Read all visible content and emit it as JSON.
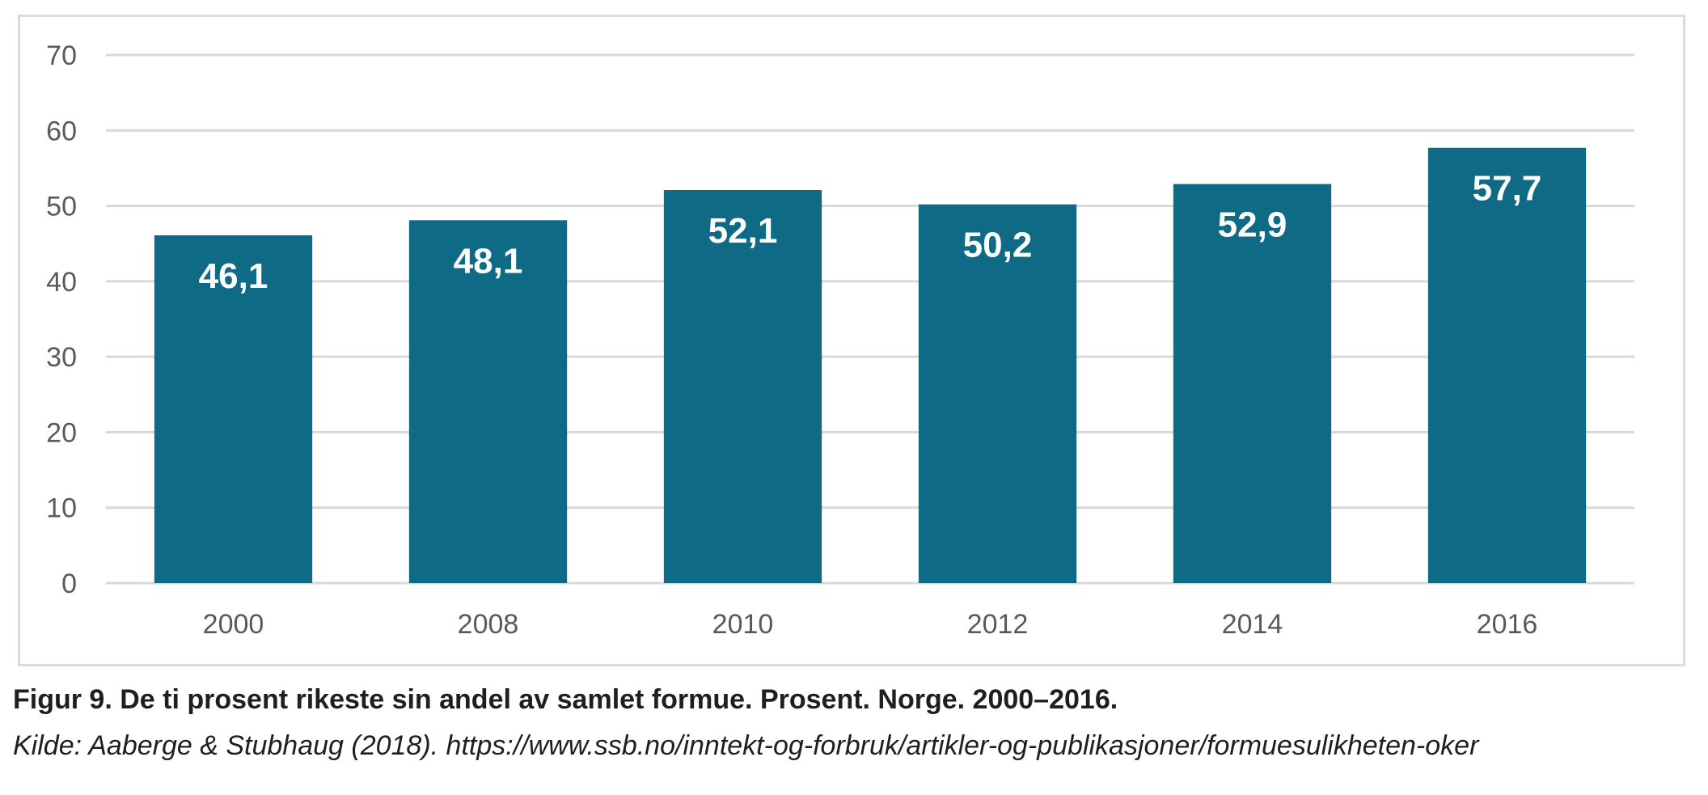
{
  "chart_data": {
    "type": "bar",
    "categories": [
      "2000",
      "2008",
      "2010",
      "2012",
      "2014",
      "2016"
    ],
    "values": [
      46.1,
      48.1,
      52.1,
      50.2,
      52.9,
      57.7
    ],
    "data_labels": [
      "46,1",
      "48,1",
      "52,1",
      "50,2",
      "52,9",
      "57,7"
    ],
    "title": "",
    "xlabel": "",
    "ylabel": "",
    "ylim": [
      0,
      70
    ],
    "yticks": [
      0,
      10,
      20,
      30,
      40,
      50,
      60,
      70
    ],
    "grid": "horizontal",
    "bar_color": "#0f6b85",
    "grid_color": "#d9d9d9"
  },
  "caption": {
    "figure": "Figur 9. De ti prosent rikeste sin andel av samlet formue. Prosent. Norge. 2000–2016.",
    "source": "Kilde: Aaberge & Stubhaug (2018). https://www.ssb.no/inntekt-og-forbruk/artikler-og-publikasjoner/formuesulikheten-oker"
  }
}
